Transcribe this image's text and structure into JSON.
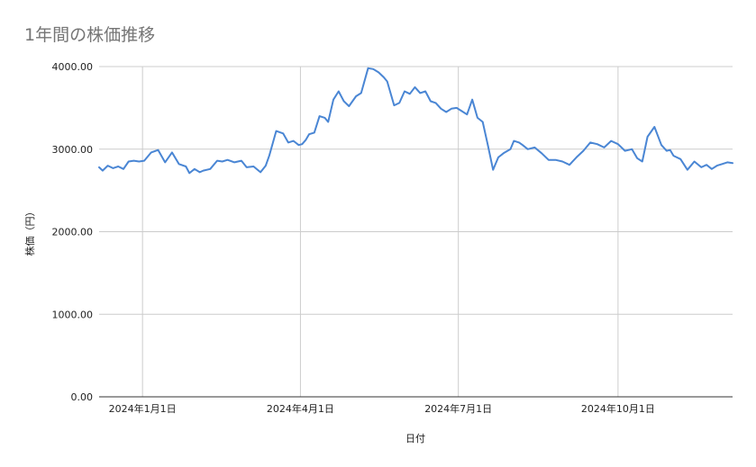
{
  "chart_data": {
    "type": "line",
    "title": "1年間の株価推移",
    "xlabel": "日付",
    "ylabel": "株価（円）",
    "ylim": [
      0,
      4000
    ],
    "yticks": [
      "0.00",
      "1000.00",
      "2000.00",
      "3000.00",
      "4000.00"
    ],
    "xlim": [
      "2023-12-07",
      "2024-12-06"
    ],
    "xticks": [
      {
        "date": "2024-01-01",
        "label": "2024年1月1日"
      },
      {
        "date": "2024-04-01",
        "label": "2024年4月1日"
      },
      {
        "date": "2024-07-01",
        "label": "2024年7月1日"
      },
      {
        "date": "2024-10-01",
        "label": "2024年10月1日"
      }
    ],
    "grid": true,
    "legend": "none",
    "color": "#4a86d4",
    "series": [
      {
        "x": [
          "2023-12-07",
          "2023-12-09",
          "2023-12-12",
          "2023-12-15",
          "2023-12-18",
          "2023-12-21",
          "2023-12-24",
          "2023-12-27",
          "2023-12-30",
          "2024-01-02",
          "2024-01-06",
          "2024-01-10",
          "2024-01-14",
          "2024-01-18",
          "2024-01-22",
          "2024-01-26",
          "2024-01-28",
          "2024-01-31",
          "2024-02-03",
          "2024-02-05",
          "2024-02-09",
          "2024-02-13",
          "2024-02-16",
          "2024-02-19",
          "2024-02-23",
          "2024-02-27",
          "2024-03-01",
          "2024-03-05",
          "2024-03-09",
          "2024-03-12",
          "2024-03-14",
          "2024-03-18",
          "2024-03-22",
          "2024-03-25",
          "2024-03-28",
          "2024-03-31",
          "2024-04-02",
          "2024-04-04",
          "2024-04-06",
          "2024-04-09",
          "2024-04-12",
          "2024-04-15",
          "2024-04-17",
          "2024-04-20",
          "2024-04-23",
          "2024-04-26",
          "2024-04-29",
          "2024-05-03",
          "2024-05-06",
          "2024-05-10",
          "2024-05-13",
          "2024-05-16",
          "2024-05-19",
          "2024-05-21",
          "2024-05-25",
          "2024-05-28",
          "2024-05-31",
          "2024-06-03",
          "2024-06-06",
          "2024-06-09",
          "2024-06-12",
          "2024-06-15",
          "2024-06-18",
          "2024-06-21",
          "2024-06-24",
          "2024-06-27",
          "2024-06-30",
          "2024-07-03",
          "2024-07-06",
          "2024-07-09",
          "2024-07-12",
          "2024-07-15",
          "2024-07-18",
          "2024-07-21",
          "2024-07-24",
          "2024-07-27",
          "2024-07-31",
          "2024-08-02",
          "2024-08-05",
          "2024-08-07",
          "2024-08-10",
          "2024-08-14",
          "2024-08-18",
          "2024-08-22",
          "2024-08-26",
          "2024-08-30",
          "2024-09-03",
          "2024-09-07",
          "2024-09-11",
          "2024-09-15",
          "2024-09-19",
          "2024-09-23",
          "2024-09-27",
          "2024-10-01",
          "2024-10-05",
          "2024-10-09",
          "2024-10-12",
          "2024-10-15",
          "2024-10-18",
          "2024-10-22",
          "2024-10-26",
          "2024-10-29",
          "2024-10-31",
          "2024-11-02",
          "2024-11-06",
          "2024-11-10",
          "2024-11-14",
          "2024-11-18",
          "2024-11-21",
          "2024-11-24",
          "2024-11-27",
          "2024-11-30",
          "2024-12-03",
          "2024-12-06"
        ],
        "values": [
          2780,
          2740,
          2800,
          2770,
          2790,
          2760,
          2850,
          2860,
          2850,
          2860,
          2960,
          2990,
          2840,
          2960,
          2820,
          2790,
          2710,
          2760,
          2720,
          2740,
          2760,
          2860,
          2850,
          2870,
          2840,
          2860,
          2780,
          2790,
          2720,
          2800,
          2920,
          3220,
          3190,
          3080,
          3100,
          3050,
          3060,
          3110,
          3180,
          3200,
          3400,
          3380,
          3330,
          3600,
          3700,
          3580,
          3520,
          3640,
          3680,
          3980,
          3970,
          3930,
          3870,
          3820,
          3530,
          3560,
          3700,
          3670,
          3750,
          3680,
          3700,
          3580,
          3560,
          3490,
          3450,
          3490,
          3500,
          3460,
          3420,
          3600,
          3380,
          3330,
          3050,
          2750,
          2900,
          2950,
          3000,
          3100,
          3080,
          3050,
          3000,
          3020,
          2950,
          2870,
          2870,
          2850,
          2810,
          2900,
          2980,
          3080,
          3060,
          3020,
          3100,
          3060,
          2980,
          3000,
          2890,
          2850,
          3150,
          3270,
          3050,
          2980,
          2990,
          2920,
          2880,
          2750,
          2850,
          2780,
          2810,
          2760,
          2800,
          2820,
          2840,
          2830
        ]
      }
    ]
  }
}
